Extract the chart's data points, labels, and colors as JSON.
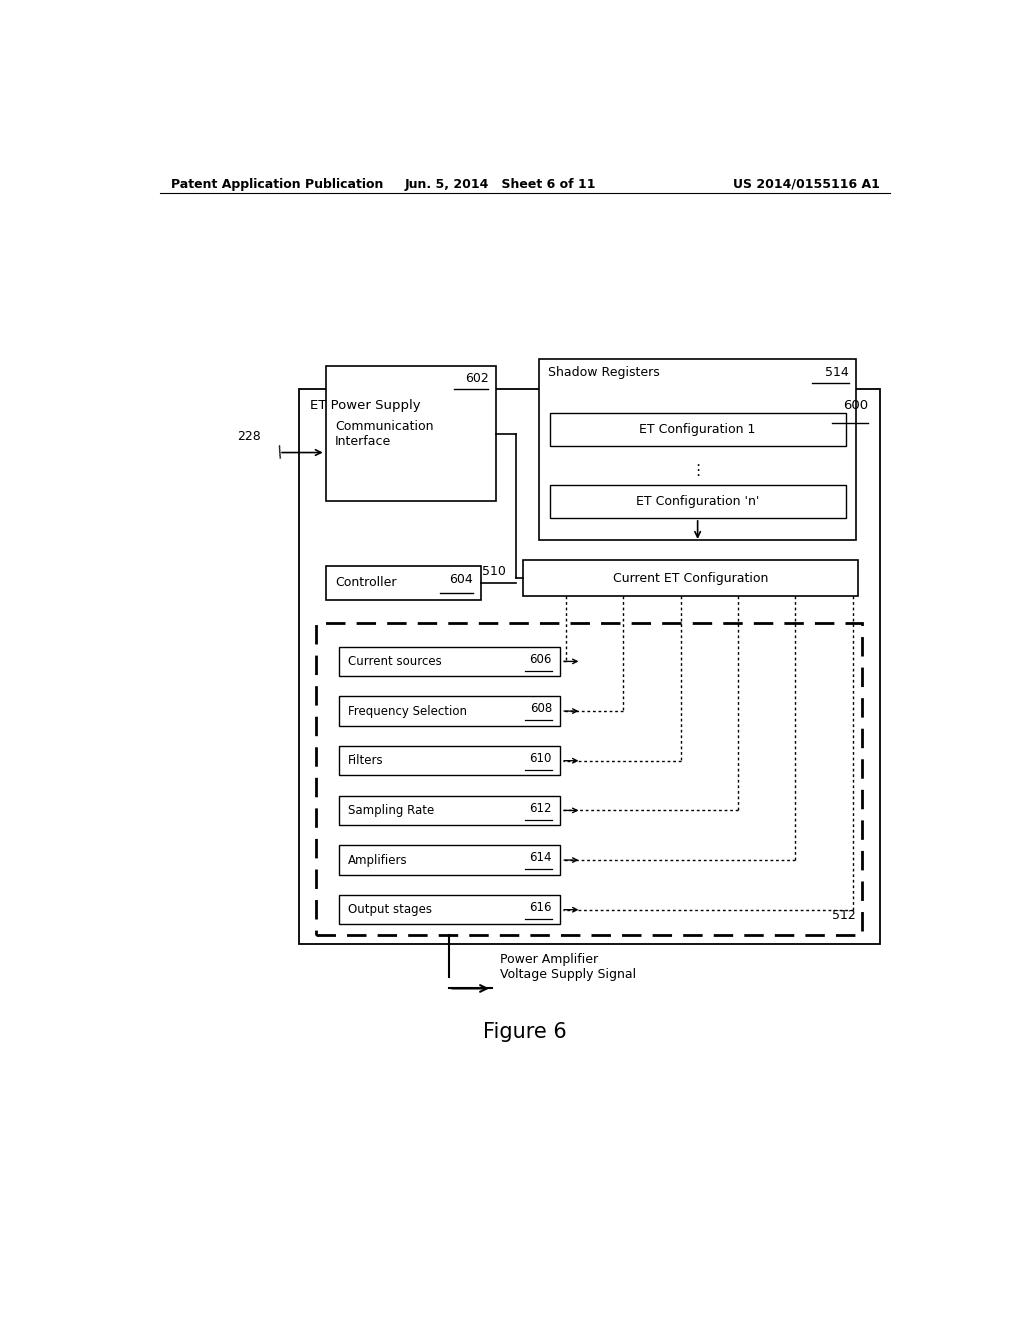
{
  "header_left": "Patent Application Publication",
  "header_mid": "Jun. 5, 2014   Sheet 6 of 11",
  "header_right": "US 2014/0155116 A1",
  "figure_label": "Figure 6",
  "outer_box_label": "ET Power Supply",
  "outer_box_label_num": "600",
  "comm_iface_label": "Communication\nInterface",
  "comm_iface_num": "602",
  "shadow_reg_label": "Shadow Registers",
  "shadow_reg_num": "514",
  "et_config1_label": "ET Configuration 1",
  "et_confign_label": "ET Configuration 'n'",
  "current_et_label": "Current ET Configuration",
  "controller_label": "Controller",
  "controller_num": "604",
  "bus_num": "510",
  "inner_dashed_num": "512",
  "signal_num": "228",
  "components": [
    {
      "label": "Current sources",
      "num": "606"
    },
    {
      "label": "Frequency Selection",
      "num": "608"
    },
    {
      "label": "Filters",
      "num": "610"
    },
    {
      "label": "Sampling Rate",
      "num": "612"
    },
    {
      "label": "Amplifiers",
      "num": "614"
    },
    {
      "label": "Output stages",
      "num": "616"
    }
  ],
  "pa_signal_label": "Power Amplifier\nVoltage Supply Signal",
  "bg_color": "#ffffff",
  "box_color": "#000000",
  "text_color": "#000000"
}
